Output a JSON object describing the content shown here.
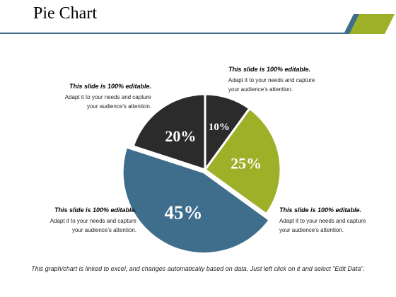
{
  "page": {
    "title": "Pie Chart",
    "footer": "This graph/chart is linked to excel, and changes automatically based on data. Just left click on it and select “Edit Data”."
  },
  "colors": {
    "rule": "#3f6e8c",
    "corner_blue": "#3f6e8c",
    "corner_green": "#9db027"
  },
  "callouts": [
    {
      "title": "This slide is 100% editable.",
      "line1": "Adapt it to your needs and capture",
      "line2": "your audience’s attention."
    },
    {
      "title": "This slide is 100% editable.",
      "line1": "Adapt it to your needs and capture",
      "line2": "your audience’s attention."
    },
    {
      "title": "This slide is 100% editable.",
      "line1": "Adapt it to your needs and capture",
      "line2": "your audience’s attention."
    },
    {
      "title": "This slide is 100% editable.",
      "line1": "Adapt it to your needs and capture",
      "line2": "your audience’s attention."
    }
  ],
  "chart_data": {
    "type": "pie",
    "title": "",
    "start_angle": "12 o'clock, clockwise",
    "slices": [
      {
        "label": "10%",
        "value": 10,
        "color": "#2b2b2b",
        "exploded": false
      },
      {
        "label": "25%",
        "value": 25,
        "color": "#9db027",
        "exploded": false
      },
      {
        "label": "45%",
        "value": 45,
        "color": "#3f6e8c",
        "exploded": true
      },
      {
        "label": "20%",
        "value": 20,
        "color": "#2b2b2b",
        "exploded": false
      }
    ]
  }
}
